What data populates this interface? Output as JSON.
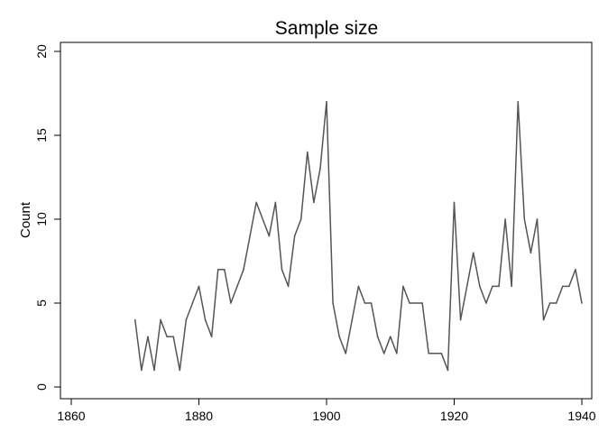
{
  "chart_data": {
    "type": "line",
    "title": "Sample size",
    "xlabel": "",
    "ylabel": "Count",
    "xlim": [
      1860,
      1940
    ],
    "ylim": [
      0,
      20
    ],
    "x_ticks": [
      1860,
      1880,
      1900,
      1920,
      1940
    ],
    "y_ticks": [
      0,
      5,
      10,
      15,
      20
    ],
    "grid": false,
    "legend": "none",
    "line_color": "#555555",
    "series": [
      {
        "x": [
          1870,
          1871,
          1872,
          1873,
          1874,
          1875,
          1876,
          1877,
          1878,
          1879,
          1880,
          1881,
          1882,
          1883,
          1884,
          1885,
          1886,
          1887,
          1888,
          1889,
          1890,
          1891,
          1892,
          1893,
          1894,
          1895,
          1896,
          1897,
          1898,
          1899,
          1900,
          1901,
          1902,
          1903,
          1904,
          1905,
          1906,
          1907,
          1908,
          1909,
          1910,
          1911,
          1912,
          1913,
          1914,
          1915,
          1916,
          1917,
          1918,
          1919,
          1920,
          1921,
          1922,
          1923,
          1924,
          1925,
          1926,
          1927,
          1928,
          1929,
          1930,
          1931,
          1932,
          1933,
          1934,
          1935,
          1936,
          1937,
          1938,
          1939,
          1940
        ],
        "values": [
          4,
          1,
          3,
          1,
          4,
          3,
          3,
          1,
          4,
          5,
          6,
          4,
          3,
          7,
          7,
          5,
          6,
          7,
          9,
          11,
          10,
          9,
          11,
          7,
          6,
          9,
          10,
          14,
          11,
          13,
          17,
          5,
          3,
          2,
          4,
          6,
          5,
          5,
          3,
          2,
          3,
          2,
          6,
          5,
          5,
          5,
          2,
          2,
          2,
          1,
          11,
          4,
          6,
          8,
          6,
          5,
          6,
          6,
          10,
          6,
          17,
          10,
          8,
          10,
          4,
          5,
          5,
          6,
          6,
          7,
          5
        ]
      }
    ]
  }
}
